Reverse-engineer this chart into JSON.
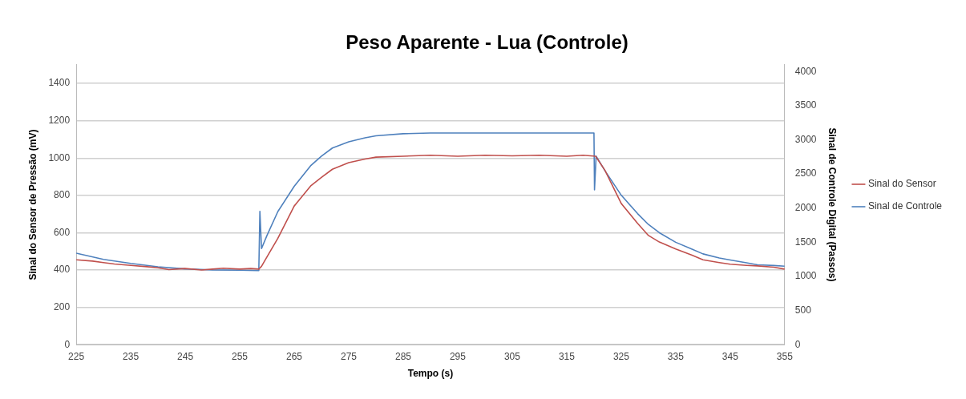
{
  "chart_data": {
    "type": "line",
    "title": "Peso Aparente - Lua (Controle)",
    "xlabel": "Tempo (s)",
    "ylabel": "Sinal do Sensor de Pressão (mV)",
    "y2label": "Sinal de Controle Digital (Passos)",
    "xlim": [
      225,
      355
    ],
    "xticks": [
      225,
      235,
      245,
      255,
      265,
      275,
      285,
      295,
      305,
      315,
      325,
      335,
      345,
      355
    ],
    "ylim": [
      0,
      1500
    ],
    "yticks": [
      0,
      200,
      400,
      600,
      800,
      1000,
      1200,
      1400
    ],
    "y2lim": [
      0,
      4100
    ],
    "y2ticks": [
      0,
      500,
      1000,
      1500,
      2000,
      2500,
      3000,
      3500,
      4000
    ],
    "grid": "y",
    "legend": "right",
    "marker": "none",
    "line_style": "solid",
    "series": [
      {
        "name": "Sinal do Sensor",
        "color": "#c0504d",
        "x": [
          225,
          228,
          230,
          232,
          235,
          238,
          240,
          242,
          245,
          248,
          250,
          252,
          255,
          257,
          258.5,
          259,
          260,
          262,
          265,
          268,
          270,
          272,
          275,
          278,
          280,
          285,
          290,
          295,
          300,
          305,
          310,
          315,
          318,
          320.3,
          322,
          325,
          328,
          330,
          332,
          335,
          338,
          340,
          343,
          345,
          348,
          350,
          353,
          355
        ],
        "values": [
          455,
          448,
          440,
          432,
          425,
          418,
          412,
          402,
          408,
          400,
          405,
          410,
          405,
          408,
          405,
          420,
          470,
          570,
          743,
          850,
          896,
          940,
          975,
          995,
          1005,
          1010,
          1015,
          1010,
          1015,
          1012,
          1015,
          1010,
          1015,
          1010,
          935,
          757,
          650,
          585,
          550,
          513,
          480,
          455,
          440,
          431,
          425,
          422,
          415,
          405
        ]
      },
      {
        "name": "Sinal de Controle",
        "color": "#4f81bd",
        "axis": "y2",
        "x": [
          225,
          230,
          235,
          240,
          245,
          250,
          255,
          258.5,
          258.7,
          259,
          260,
          262,
          265,
          268,
          270,
          272,
          275,
          278,
          280,
          285,
          290,
          295,
          300,
          305,
          310,
          315,
          320,
          320.1,
          320.4,
          322,
          325,
          328,
          330,
          332,
          335,
          338,
          340,
          343,
          345,
          348,
          350,
          353,
          355
        ],
        "values": [
          1340,
          1250,
          1190,
          1140,
          1110,
          1095,
          1090,
          1085,
          1954,
          1407,
          1600,
          1950,
          2320,
          2620,
          2762,
          2880,
          2970,
          3030,
          3060,
          3090,
          3100,
          3100,
          3100,
          3100,
          3100,
          3100,
          3100,
          2267,
          2762,
          2550,
          2190,
          1920,
          1760,
          1640,
          1500,
          1400,
          1330,
          1270,
          1240,
          1200,
          1170,
          1160,
          1150
        ]
      }
    ]
  }
}
